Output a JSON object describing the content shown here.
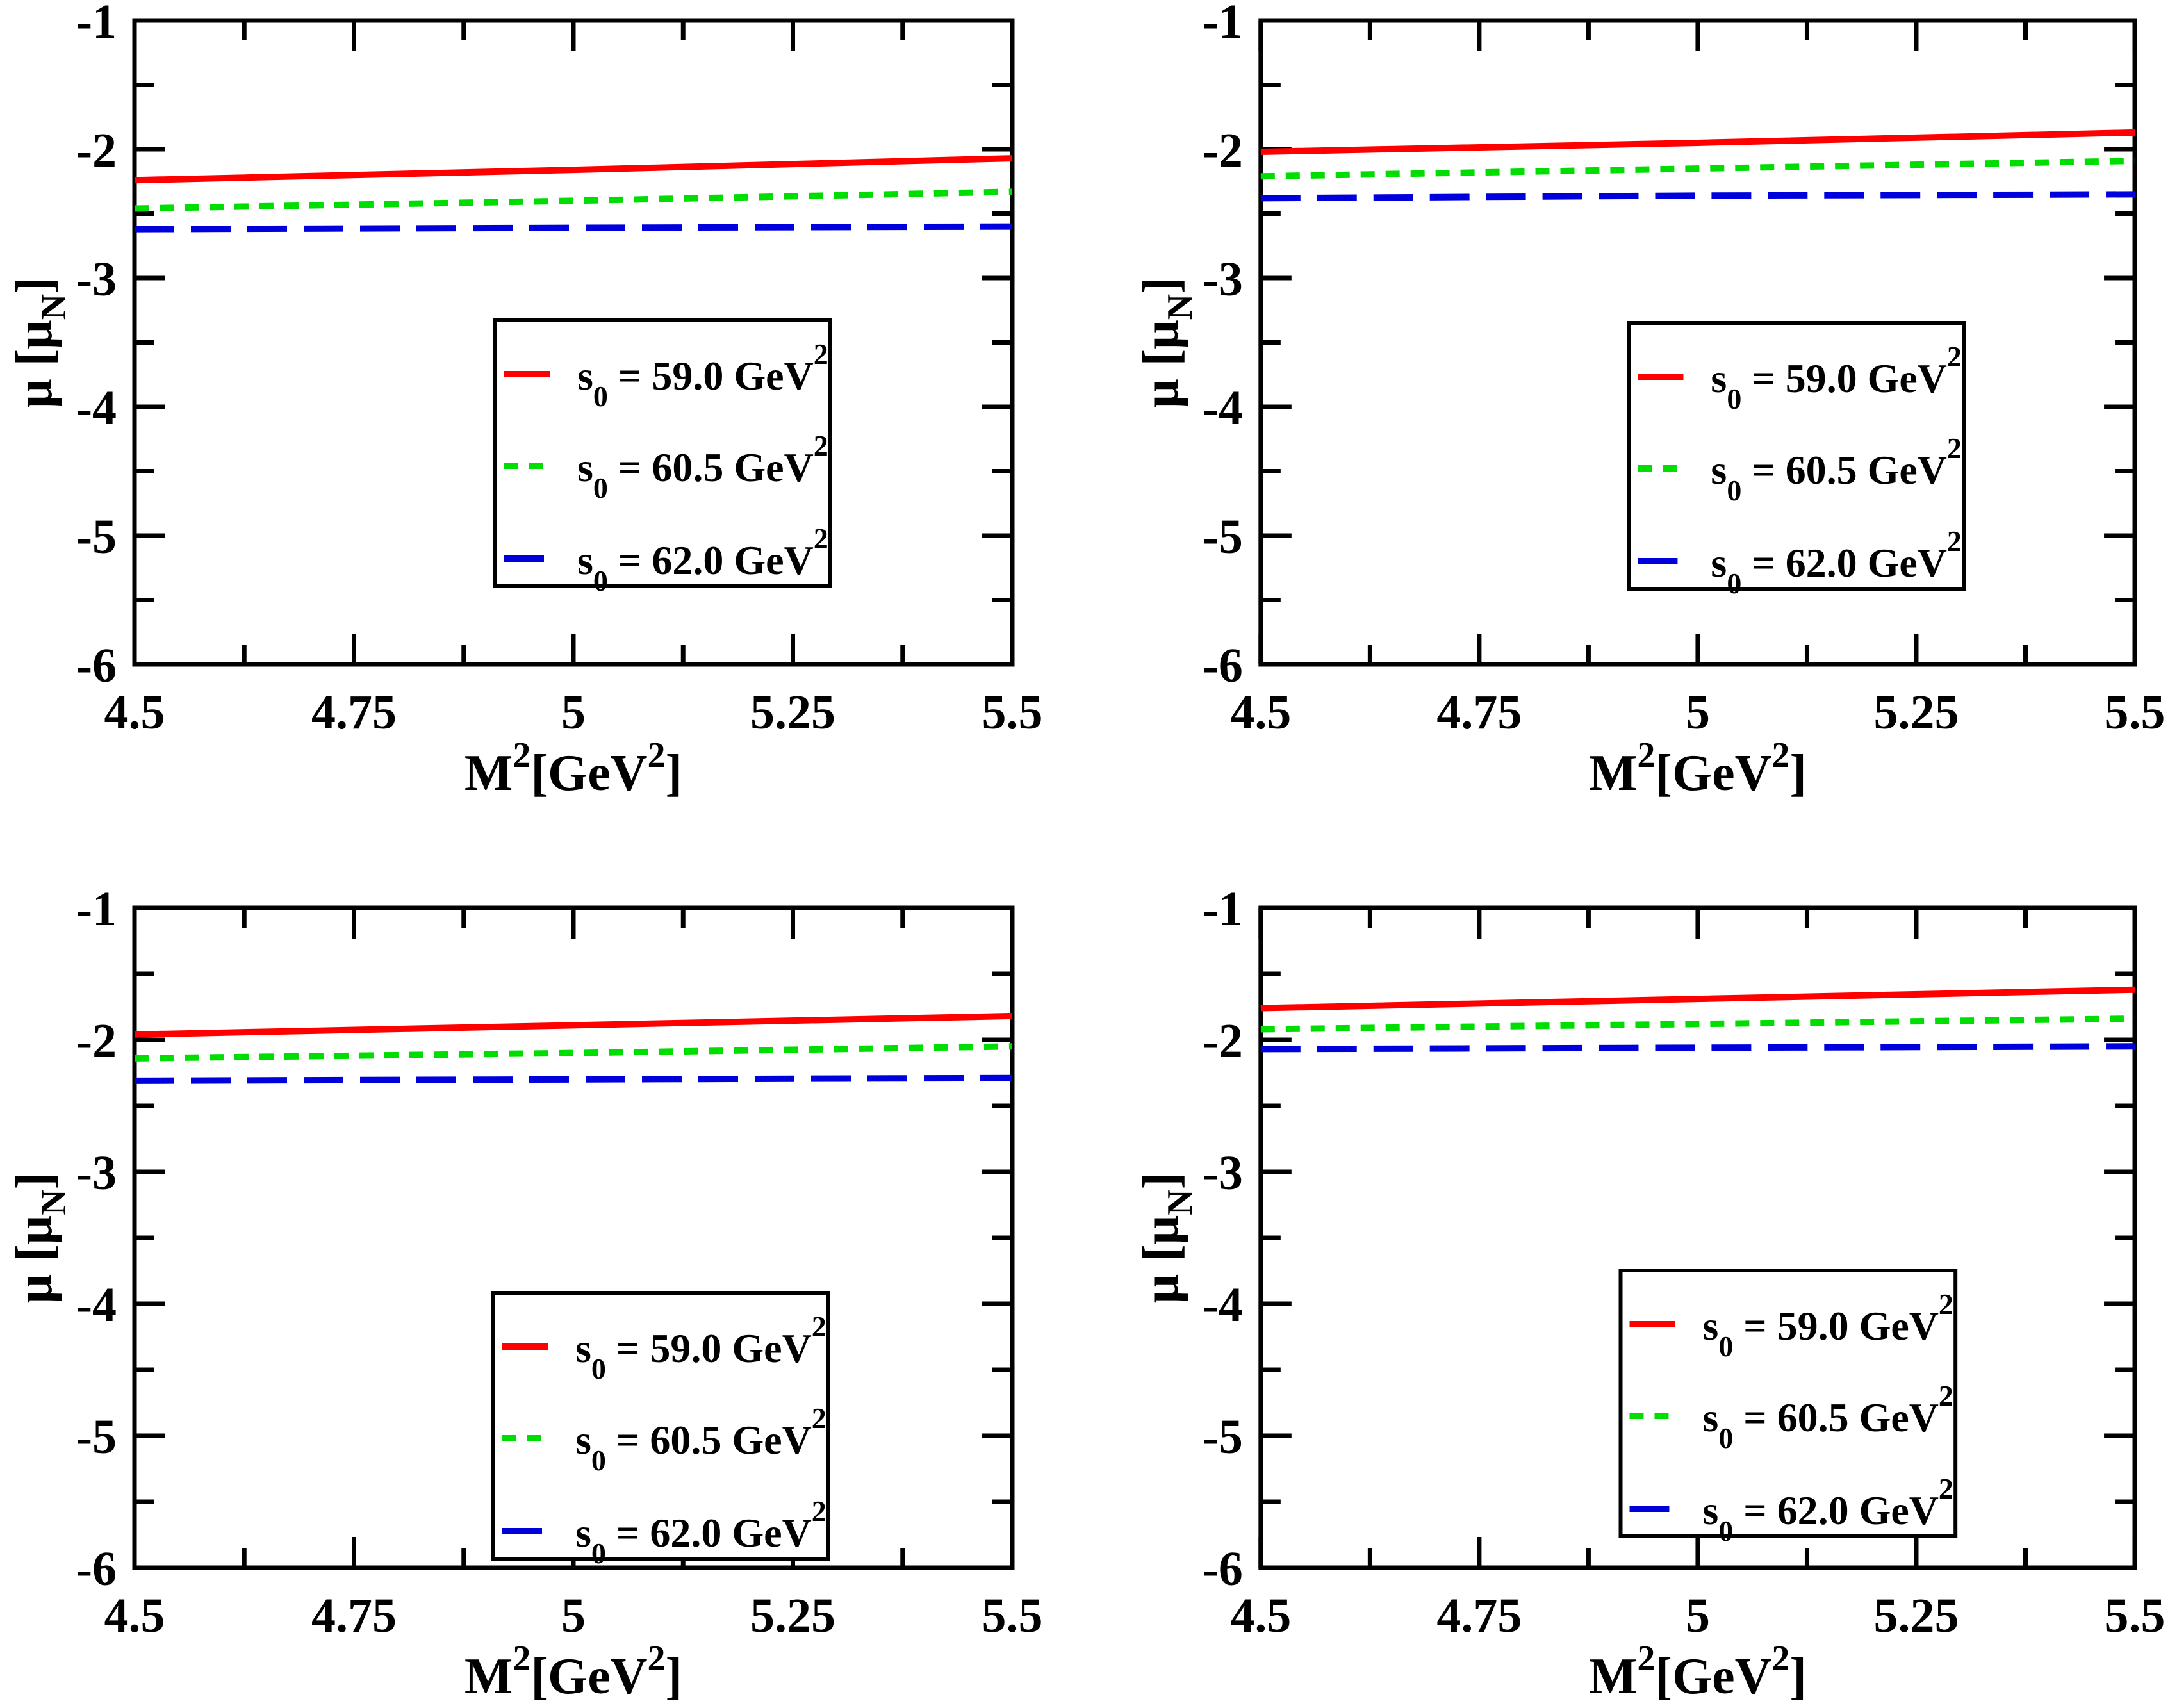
{
  "figure": {
    "background_color": "#ffffff",
    "axis_color": "#000000",
    "text_color": "#000000"
  },
  "chart_data": {
    "type": "line",
    "layout": "2x2-grid",
    "grid": "off",
    "legend_position": "center-right-box",
    "x": [
      4.5,
      5.0,
      5.5
    ],
    "xlim": [
      4.5,
      5.5
    ],
    "ylim": [
      -6,
      -1
    ],
    "xlabel": {
      "text": "M^2 [GeV^2]",
      "parts": [
        {
          "t": "M"
        },
        {
          "t": "2",
          "sup": true
        },
        {
          "t": "[GeV"
        },
        {
          "t": "2",
          "sup": true
        },
        {
          "t": "]"
        }
      ]
    },
    "ylabel": {
      "text": "μ [μ_N]",
      "parts": [
        {
          "t": "μ ["
        },
        {
          "t": "μ"
        },
        {
          "t": "N",
          "sub": true
        },
        {
          "t": "]"
        }
      ]
    },
    "xticks": {
      "major": [
        4.5,
        4.75,
        5.0,
        5.25,
        5.5
      ],
      "labels": [
        "4.5",
        "4.75",
        "5",
        "5.25",
        "5.5"
      ],
      "minor": [
        4.625,
        4.875,
        5.125,
        5.375
      ]
    },
    "yticks": {
      "major": [
        -1,
        -2,
        -3,
        -4,
        -5,
        -6
      ],
      "labels": [
        "-1",
        "-2",
        "-3",
        "-4",
        "-5",
        "-6"
      ],
      "minor": [
        -1.5,
        -2.5,
        -3.5,
        -4.5,
        -5.5
      ]
    },
    "legend": {
      "entries": [
        {
          "id": "s0-59.0",
          "label": "s0 = 59.0 GeV^2",
          "color": "#ff0000",
          "line_style": "solid",
          "parts": [
            {
              "t": "s"
            },
            {
              "t": "0",
              "sub": true
            },
            {
              "t": " = 59.0 GeV"
            },
            {
              "t": "2",
              "sup": true
            }
          ]
        },
        {
          "id": "s0-60.5",
          "label": "s0 = 60.5 GeV^2",
          "color": "#00dd00",
          "line_style": "dotted",
          "parts": [
            {
              "t": "s"
            },
            {
              "t": "0",
              "sub": true
            },
            {
              "t": " = 60.5 GeV"
            },
            {
              "t": "2",
              "sup": true
            }
          ]
        },
        {
          "id": "s0-62.0",
          "label": "s0 = 62.0 GeV^2",
          "color": "#0000dd",
          "line_style": "dashed",
          "parts": [
            {
              "t": "s"
            },
            {
              "t": "0",
              "sub": true
            },
            {
              "t": " = 62.0 GeV"
            },
            {
              "t": "2",
              "sup": true
            }
          ]
        }
      ]
    },
    "panels": [
      {
        "id": "top-left",
        "series": [
          {
            "legend": "s0-59.0",
            "y": [
              -2.24,
              -2.16,
              -2.07
            ]
          },
          {
            "legend": "s0-60.5",
            "y": [
              -2.46,
              -2.4,
              -2.33
            ]
          },
          {
            "legend": "s0-62.0",
            "y": [
              -2.62,
              -2.61,
              -2.6
            ]
          }
        ]
      },
      {
        "id": "top-right",
        "series": [
          {
            "legend": "s0-59.0",
            "y": [
              -2.02,
              -1.95,
              -1.87
            ]
          },
          {
            "legend": "s0-60.5",
            "y": [
              -2.21,
              -2.15,
              -2.09
            ]
          },
          {
            "legend": "s0-62.0",
            "y": [
              -2.38,
              -2.36,
              -2.35
            ]
          }
        ]
      },
      {
        "id": "bottom-left",
        "series": [
          {
            "legend": "s0-59.0",
            "y": [
              -1.96,
              -1.89,
              -1.82
            ]
          },
          {
            "legend": "s0-60.5",
            "y": [
              -2.14,
              -2.1,
              -2.05
            ]
          },
          {
            "legend": "s0-62.0",
            "y": [
              -2.31,
              -2.3,
              -2.29
            ]
          }
        ]
      },
      {
        "id": "bottom-right",
        "series": [
          {
            "legend": "s0-59.0",
            "y": [
              -1.76,
              -1.69,
              -1.62
            ]
          },
          {
            "legend": "s0-60.5",
            "y": [
              -1.92,
              -1.88,
              -1.84
            ]
          },
          {
            "legend": "s0-62.0",
            "y": [
              -2.07,
              -2.06,
              -2.05
            ]
          }
        ]
      }
    ]
  }
}
